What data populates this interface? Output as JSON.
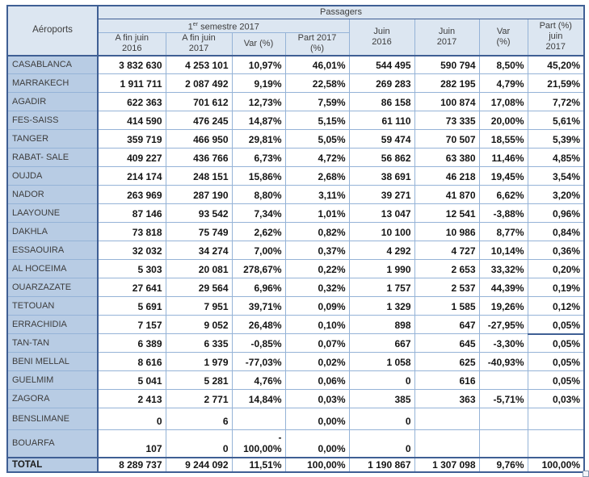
{
  "table": {
    "title": "Passagers",
    "corner_header": "Aéroports",
    "group_semestre": {
      "prefix": "1",
      "sup": "er",
      "rest": " semestre 2017"
    },
    "headers": {
      "fin2016": "A fin juin\n2016",
      "fin2017": "A fin juin\n2017",
      "var_sem": "Var (%)",
      "part2017": "Part 2017\n(%)",
      "juin2016": "Juin\n2016",
      "juin2017": "Juin\n2017",
      "var_juin": "Var\n(%)",
      "part_juin": "Part (%)\njuin\n2017"
    },
    "colors": {
      "header_fill": "#dce6f1",
      "label_fill": "#b8cce4",
      "border_light": "#95b3d7",
      "border_dark": "#3f5f94"
    },
    "rows": [
      {
        "name": "CASABLANCA",
        "values": [
          "3 832 630",
          "4 253 101",
          "10,97%",
          "46,01%",
          "544 495",
          "590 794",
          "8,50%",
          "45,20%"
        ]
      },
      {
        "name": "MARRAKECH",
        "values": [
          "1 911 711",
          "2 087 492",
          "9,19%",
          "22,58%",
          "269 283",
          "282 195",
          "4,79%",
          "21,59%"
        ]
      },
      {
        "name": "AGADIR",
        "values": [
          "622 363",
          "701 612",
          "12,73%",
          "7,59%",
          "86 158",
          "100 874",
          "17,08%",
          "7,72%"
        ]
      },
      {
        "name": "FES-SAISS",
        "values": [
          "414 590",
          "476 245",
          "14,87%",
          "5,15%",
          "61 110",
          "73 335",
          "20,00%",
          "5,61%"
        ]
      },
      {
        "name": "TANGER",
        "values": [
          "359 719",
          "466 950",
          "29,81%",
          "5,05%",
          "59 474",
          "70 507",
          "18,55%",
          "5,39%"
        ]
      },
      {
        "name": "RABAT- SALE",
        "values": [
          "409 227",
          "436 766",
          "6,73%",
          "4,72%",
          "56 862",
          "63 380",
          "11,46%",
          "4,85%"
        ]
      },
      {
        "name": "OUJDA",
        "values": [
          "214 174",
          "248 151",
          "15,86%",
          "2,68%",
          "38 691",
          "46 218",
          "19,45%",
          "3,54%"
        ]
      },
      {
        "name": "NADOR",
        "values": [
          "263 969",
          "287 190",
          "8,80%",
          "3,11%",
          "39 271",
          "41 870",
          "6,62%",
          "3,20%"
        ]
      },
      {
        "name": "LAAYOUNE",
        "values": [
          "87 146",
          "93 542",
          "7,34%",
          "1,01%",
          "13 047",
          "12 541",
          "-3,88%",
          "0,96%"
        ]
      },
      {
        "name": "DAKHLA",
        "values": [
          "73 818",
          "75 749",
          "2,62%",
          "0,82%",
          "10 100",
          "10 986",
          "8,77%",
          "0,84%"
        ]
      },
      {
        "name": "ESSAOUIRA",
        "values": [
          "32 032",
          "34 274",
          "7,00%",
          "0,37%",
          "4 292",
          "4 727",
          "10,14%",
          "0,36%"
        ]
      },
      {
        "name": "AL HOCEIMA",
        "values": [
          "5 303",
          "20 081",
          "278,67%",
          "0,22%",
          "1 990",
          "2 653",
          "33,32%",
          "0,20%"
        ]
      },
      {
        "name": "OUARZAZATE",
        "values": [
          "27 641",
          "29 564",
          "6,96%",
          "0,32%",
          "1 757",
          "2 537",
          "44,39%",
          "0,19%"
        ]
      },
      {
        "name": "TETOUAN",
        "values": [
          "5 691",
          "7 951",
          "39,71%",
          "0,09%",
          "1 329",
          "1 585",
          "19,26%",
          "0,12%"
        ]
      },
      {
        "name": "ERRACHIDIA",
        "values": [
          "7 157",
          "9 052",
          "26,48%",
          "0,10%",
          "898",
          "647",
          "-27,95%",
          "0,05%"
        ]
      },
      {
        "name": "TAN-TAN",
        "values": [
          "6 389",
          "6 335",
          "-0,85%",
          "0,07%",
          "667",
          "645",
          "-3,30%",
          "0,05%"
        ]
      },
      {
        "name": "BENI MELLAL",
        "values": [
          "8 616",
          "1 979",
          "-77,03%",
          "0,02%",
          "1 058",
          "625",
          "-40,93%",
          "0,05%"
        ]
      },
      {
        "name": "GUELMIM",
        "values": [
          "5 041",
          "5 281",
          "4,76%",
          "0,06%",
          "0",
          "616",
          "",
          "0,05%"
        ]
      },
      {
        "name": "ZAGORA",
        "values": [
          "2 413",
          "2 771",
          "14,84%",
          "0,03%",
          "385",
          "363",
          "-5,71%",
          "0,03%"
        ]
      },
      {
        "name": "BENSLIMANE",
        "values": [
          "0",
          "6",
          "",
          "0,00%",
          "0",
          "",
          "",
          ""
        ]
      },
      {
        "name": "BOUARFA",
        "values": [
          "107",
          "0",
          "-\n100,00%",
          "0,00%",
          "0",
          "",
          "",
          ""
        ]
      }
    ],
    "total": {
      "name": "TOTAL",
      "values": [
        "8 289 737",
        "9 244 092",
        "11,51%",
        "100,00%",
        "1 190 867",
        "1 307 098",
        "9,76%",
        "100,00%"
      ]
    }
  }
}
